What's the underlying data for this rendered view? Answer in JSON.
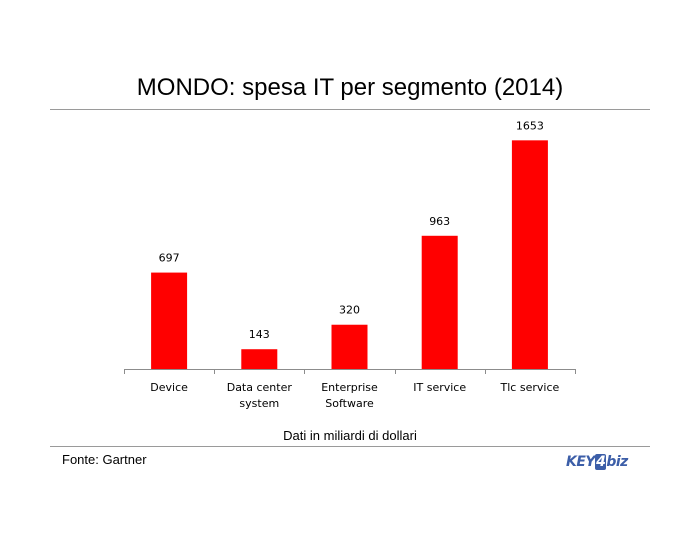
{
  "slide": {
    "title": "MONDO: spesa IT per segmento (2014)",
    "subtitle": "Dati in miliardi di dollari",
    "source": "Fonte: Gartner",
    "logo": {
      "part1": "KEY",
      "part2": "4",
      "part3": "biz"
    }
  },
  "chart_data": {
    "type": "bar",
    "categories": [
      [
        "Device"
      ],
      [
        "Data center",
        "system"
      ],
      [
        "Enterprise",
        "Software"
      ],
      [
        "IT service"
      ],
      [
        "Tlc service"
      ]
    ],
    "values": [
      697,
      143,
      320,
      963,
      1653
    ],
    "data_labels": [
      "697",
      "143",
      "320",
      "963",
      "1653"
    ],
    "ylim": [
      0,
      1800
    ],
    "bar_color": "#ff0000",
    "grid": false,
    "legend": "none"
  }
}
